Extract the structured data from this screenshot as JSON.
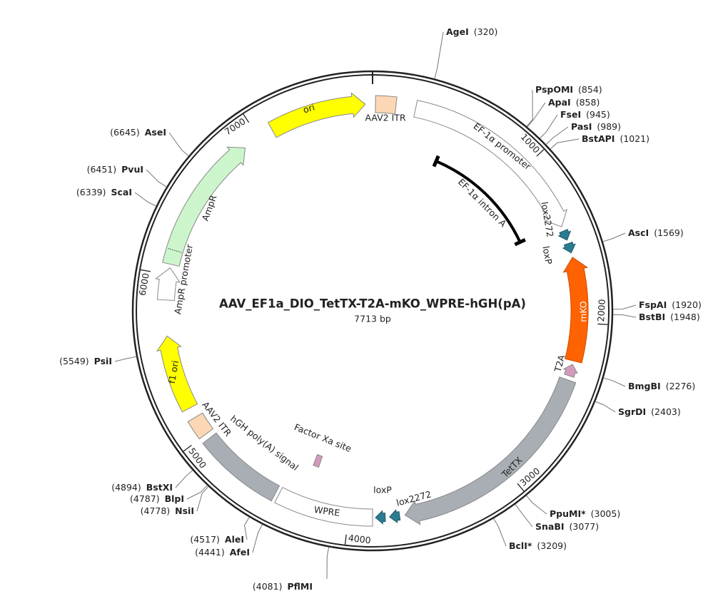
{
  "title": "AAV_EF1a_DIO_TetTX-T2A-mKO_WPRE-hGH(pA)",
  "size": {
    "value": 7713,
    "label": "7713 bp"
  },
  "ticks": [
    1000,
    2000,
    3000,
    4000,
    5000,
    6000,
    7000
  ],
  "sites": [
    {
      "name": "AgeI",
      "position": 320,
      "label": "(320)"
    },
    {
      "name": "PspOMI",
      "position": 854,
      "label": "(854)"
    },
    {
      "name": "ApaI",
      "position": 858,
      "label": "(858)"
    },
    {
      "name": "FseI",
      "position": 945,
      "label": "(945)"
    },
    {
      "name": "PasI",
      "position": 989,
      "label": "(989)"
    },
    {
      "name": "BstAPI",
      "position": 1021,
      "label": "(1021)"
    },
    {
      "name": "AscI",
      "position": 1569,
      "label": "(1569)"
    },
    {
      "name": "FspAI",
      "position": 1920,
      "label": "(1920)"
    },
    {
      "name": "BstBI",
      "position": 1948,
      "label": "(1948)"
    },
    {
      "name": "BmgBI",
      "position": 2276,
      "label": "(2276)"
    },
    {
      "name": "SgrDI",
      "position": 2403,
      "label": "(2403)"
    },
    {
      "name": "PpuMI*",
      "position": 3005,
      "label": "(3005)"
    },
    {
      "name": "SnaBI",
      "position": 3077,
      "label": "(3077)"
    },
    {
      "name": "BclI*",
      "position": 3209,
      "label": "(3209)"
    },
    {
      "name": "PflMI",
      "position": 4081,
      "label": "(4081)"
    },
    {
      "name": "AfeI",
      "position": 4441,
      "label": "(4441)"
    },
    {
      "name": "AleI",
      "position": 4517,
      "label": "(4517)"
    },
    {
      "name": "NsiI",
      "position": 4778,
      "label": "(4778)"
    },
    {
      "name": "BlpI",
      "position": 4787,
      "label": "(4787)"
    },
    {
      "name": "BstXI",
      "position": 4894,
      "label": "(4894)"
    },
    {
      "name": "PsiI",
      "position": 5549,
      "label": "(5549)"
    },
    {
      "name": "ScaI",
      "position": 6339,
      "label": "(6339)"
    },
    {
      "name": "PvuI",
      "position": 6451,
      "label": "(6451)"
    },
    {
      "name": "AseI",
      "position": 6645,
      "label": "(6645)"
    }
  ],
  "features": [
    "ori",
    "AAV2 ITR",
    "EF-1α promoter",
    "EF-1α intron A",
    "lox2272",
    "loxP",
    "mKO",
    "T2A",
    "TetTX",
    "lox2272",
    "loxP",
    "WPRE",
    "hGH poly(A) signal",
    "AAV2 ITR",
    "Factor Xa site",
    "f1 ori",
    "AmpR promoter",
    "AmpR"
  ]
}
